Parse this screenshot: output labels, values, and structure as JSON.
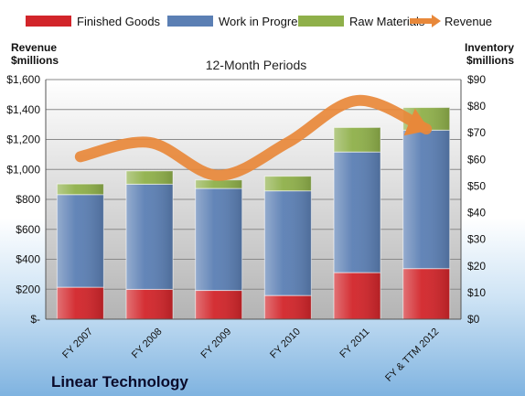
{
  "chart_data": {
    "type": "bar",
    "subtitle": "12-Month Periods",
    "footer_title": "Linear Technology",
    "ylabel_left": [
      "Revenue",
      "$millions"
    ],
    "ylabel_right": [
      "Inventory",
      "$millions"
    ],
    "categories": [
      "FY 2007",
      "FY 2008",
      "FY 2009",
      "FY 2010",
      "FY 2011",
      "FY & TTM 2012"
    ],
    "left_axis": {
      "ticks": [
        "$-",
        "$200",
        "$400",
        "$600",
        "$800",
        "$1,000",
        "$1,200",
        "$1,400",
        "$1,600"
      ],
      "ylim": [
        0,
        1600
      ]
    },
    "right_axis": {
      "ticks": [
        "$0",
        "$10",
        "$20",
        "$30",
        "$40",
        "$50",
        "$60",
        "$70",
        "$80",
        "$90"
      ],
      "ylim": [
        0,
        90
      ]
    },
    "series": [
      {
        "name": "Finished Goods",
        "axis": "right",
        "kind": "stacked-bar",
        "color": "#d2252a",
        "values": [
          12,
          11.2,
          10.8,
          8.9,
          17.5,
          19
        ]
      },
      {
        "name": "Work in Progress",
        "axis": "right",
        "kind": "stacked-bar",
        "color": "#5b7fb4",
        "values": [
          34.8,
          39.5,
          38.3,
          39.3,
          45.3,
          52
        ]
      },
      {
        "name": "Raw Materials",
        "axis": "right",
        "kind": "stacked-bar",
        "color": "#8fb04a",
        "values": [
          4,
          5,
          3.2,
          5.5,
          9.2,
          8.5
        ]
      },
      {
        "name": "Revenue",
        "axis": "left",
        "kind": "line",
        "color": "#e8883a",
        "values": [
          1085,
          1180,
          960,
          1180,
          1460,
          1270
        ]
      }
    ],
    "grid": true,
    "legend_position": "top"
  }
}
